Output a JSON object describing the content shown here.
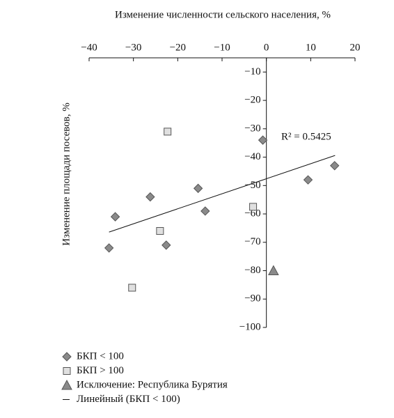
{
  "chart_data": {
    "type": "scatter",
    "title": "Изменение численности сельского населения, %",
    "y_label": "Изменение площади посевов, %",
    "xlim": [
      -40,
      20
    ],
    "ylim": [
      -100,
      -5
    ],
    "xticks": [
      {
        "value": -40,
        "label": "−40"
      },
      {
        "value": -30,
        "label": "−30"
      },
      {
        "value": -20,
        "label": "−20"
      },
      {
        "value": -10,
        "label": "−10"
      },
      {
        "value": 0,
        "label": "0"
      },
      10,
      20
    ],
    "yticks": [
      {
        "value": -10,
        "label": "−10"
      },
      {
        "value": -20,
        "label": "−20"
      },
      {
        "value": -30,
        "label": "−30"
      },
      {
        "value": -40,
        "label": "−40"
      },
      {
        "value": -50,
        "label": "−50"
      },
      {
        "value": -60,
        "label": "−60"
      },
      {
        "value": -70,
        "label": "−70"
      },
      {
        "value": -80,
        "label": "−80"
      },
      {
        "value": -90,
        "label": "−90"
      },
      {
        "value": -100,
        "label": "−100"
      }
    ],
    "series": [
      {
        "name": "БКП < 100",
        "marker": "diamond",
        "color": "#8a8a8a",
        "x": [
          -35.5,
          -34.1,
          -26.2,
          -22.6,
          -15.4,
          -13.8,
          -0.8,
          9.4,
          15.4
        ],
        "values": [
          -72,
          -61,
          -54,
          -71,
          -51,
          -59,
          -34,
          -48,
          -43
        ]
      },
      {
        "name": "БКП > 100",
        "marker": "square",
        "color": "#e0e0e0",
        "x": [
          -22.3,
          -24,
          -30.3,
          -3
        ],
        "values": [
          -31,
          -66,
          -86,
          -57.5
        ]
      },
      {
        "name": "Исключение: Республика Бурятия",
        "marker": "triangle",
        "color": "#8a8a8a",
        "x": [
          1.6
        ],
        "values": [
          -80
        ]
      }
    ],
    "trendline": {
      "name": "Линейный (БКП < 100)",
      "x": [
        -35.5,
        15.5
      ],
      "values": [
        -66.4,
        -39.4
      ]
    },
    "annotation": "R² = 0.5425"
  }
}
